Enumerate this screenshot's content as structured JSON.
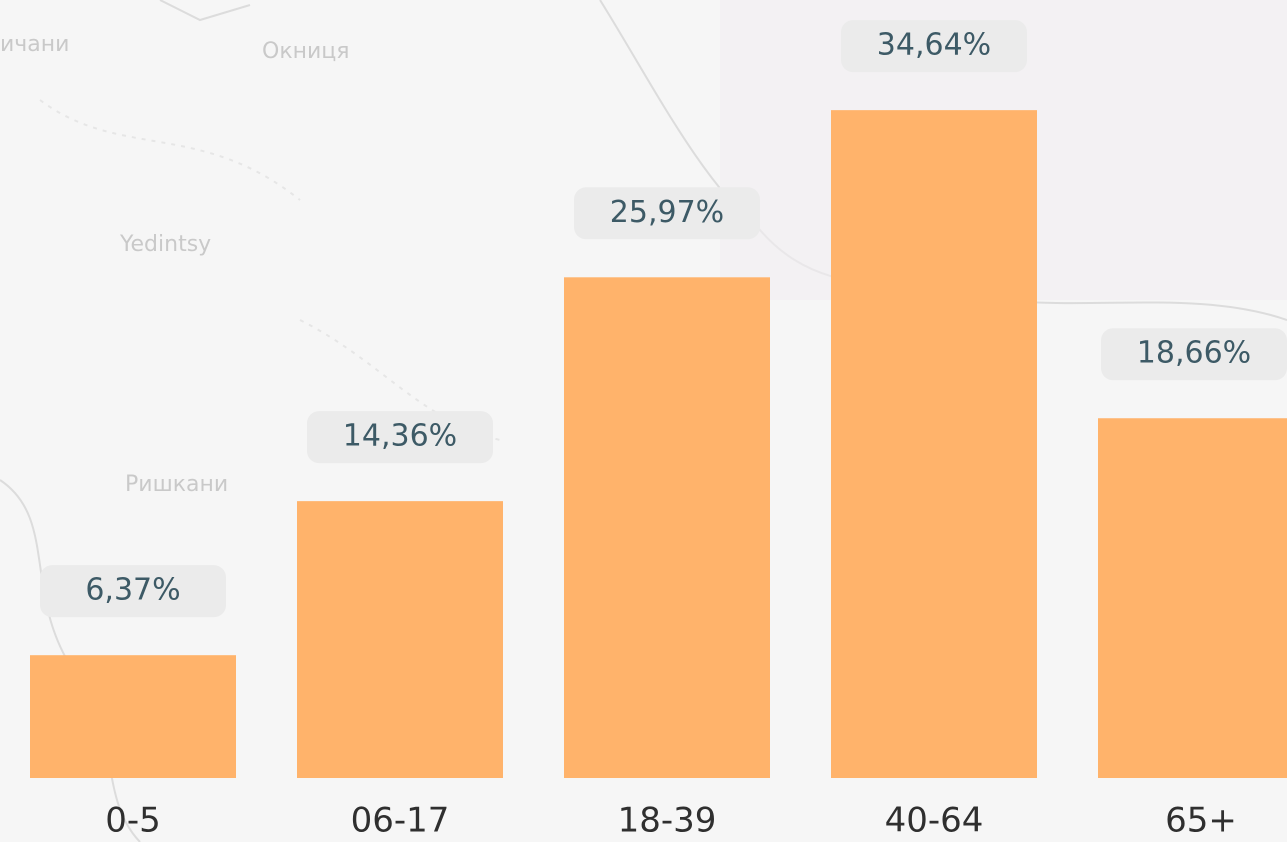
{
  "map_labels": [
    "ичани",
    "Окниця",
    "Yedintsy",
    "Ришкани"
  ],
  "chart_data": {
    "type": "bar",
    "categories": [
      "0-5",
      "06-17",
      "18-39",
      "40-64",
      "65+"
    ],
    "values": [
      6.37,
      14.36,
      25.97,
      34.64,
      18.66
    ],
    "value_labels": [
      "6,37%",
      "14,36%",
      "25,97%",
      "34,64%",
      "18,66%"
    ],
    "color": "#ffb36b"
  }
}
